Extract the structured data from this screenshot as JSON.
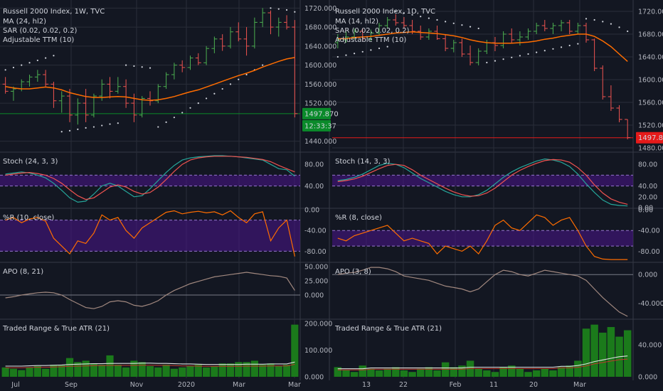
{
  "colors": {
    "background": "#131722",
    "grid": "#2a2e39",
    "divider": "#363a45",
    "up": "#26a69a",
    "candle_up": "#4caf50",
    "candle_down": "#ef5350",
    "ma": "#ff6d00",
    "stoch_k": "#26a69a",
    "stoch_d": "#ef5350",
    "band": "#4a148c",
    "wr": "#ff6d00",
    "apo": "#a1887f",
    "atr": "#e0e0e0",
    "vol": "#1b7a1b",
    "price_green": "#0a8a2a",
    "price_red": "#e51a1a"
  },
  "chart_data": [
    {
      "type": "candlestick",
      "panel": "left",
      "title": "Russell 2000 Index, 1W, TVC",
      "indicators": [
        "MA (24, hl2)",
        "SAR (0.02, 0.02, 0.2)",
        "Adjustable TTM (10)"
      ],
      "x_ticks": [
        "Jul",
        "Sep",
        "Nov",
        "2020",
        "Mar",
        "Mar"
      ],
      "y_ticks": [
        "1720.000",
        "1680.000",
        "1640.000",
        "1600.000",
        "1560.000",
        "1520.000",
        "1440.000"
      ],
      "ylim": [
        1420,
        1725
      ],
      "last_price_label": "1497.870",
      "countdown_label": "12:33:37",
      "ohlc": [
        [
          1560,
          1575,
          1540,
          1545
        ],
        [
          1545,
          1555,
          1525,
          1550
        ],
        [
          1550,
          1570,
          1545,
          1565
        ],
        [
          1565,
          1580,
          1555,
          1575
        ],
        [
          1575,
          1590,
          1565,
          1580
        ],
        [
          1580,
          1590,
          1555,
          1560
        ],
        [
          1560,
          1565,
          1510,
          1525
        ],
        [
          1525,
          1545,
          1500,
          1535
        ],
        [
          1535,
          1550,
          1480,
          1495
        ],
        [
          1495,
          1530,
          1475,
          1520
        ],
        [
          1520,
          1550,
          1480,
          1495
        ],
        [
          1495,
          1540,
          1490,
          1535
        ],
        [
          1535,
          1570,
          1525,
          1560
        ],
        [
          1560,
          1575,
          1530,
          1545
        ],
        [
          1545,
          1575,
          1540,
          1555
        ],
        [
          1555,
          1570,
          1510,
          1520
        ],
        [
          1520,
          1540,
          1480,
          1495
        ],
        [
          1495,
          1535,
          1490,
          1530
        ],
        [
          1530,
          1545,
          1515,
          1525
        ],
        [
          1525,
          1560,
          1520,
          1555
        ],
        [
          1555,
          1585,
          1550,
          1580
        ],
        [
          1580,
          1605,
          1570,
          1600
        ],
        [
          1600,
          1610,
          1585,
          1595
        ],
        [
          1595,
          1620,
          1590,
          1615
        ],
        [
          1615,
          1625,
          1600,
          1605
        ],
        [
          1605,
          1640,
          1600,
          1635
        ],
        [
          1635,
          1660,
          1625,
          1655
        ],
        [
          1655,
          1665,
          1630,
          1640
        ],
        [
          1640,
          1680,
          1635,
          1670
        ],
        [
          1670,
          1690,
          1650,
          1655
        ],
        [
          1655,
          1680,
          1620,
          1640
        ],
        [
          1640,
          1700,
          1635,
          1690
        ],
        [
          1690,
          1720,
          1680,
          1710
        ],
        [
          1710,
          1715,
          1665,
          1680
        ],
        [
          1680,
          1700,
          1660,
          1690
        ],
        [
          1690,
          1705,
          1675,
          1680
        ],
        [
          1680,
          1695,
          1490,
          1498
        ]
      ],
      "ma": [
        1555,
        1552,
        1550,
        1550,
        1552,
        1554,
        1552,
        1548,
        1542,
        1538,
        1534,
        1532,
        1532,
        1533,
        1534,
        1533,
        1530,
        1527,
        1526,
        1527,
        1530,
        1534,
        1539,
        1544,
        1548,
        1554,
        1560,
        1566,
        1572,
        1578,
        1583,
        1589,
        1596,
        1602,
        1608,
        1613,
        1616
      ],
      "sar": [
        1590,
        1595,
        1600,
        1605,
        1610,
        1615,
        1620,
        1460,
        1462,
        1465,
        1468,
        1470,
        1473,
        1476,
        1478,
        1600,
        1598,
        1596,
        1594,
        1470,
        1480,
        1490,
        1500,
        1510,
        1520,
        1530,
        1540,
        1550,
        1560,
        1570,
        1580,
        1590,
        1600,
        1720,
        1718,
        1716,
        1712
      ],
      "ttm_level": 1497.87
    },
    {
      "type": "candlestick",
      "panel": "right",
      "title": "Russell 2000 Index, 1D, TVC",
      "indicators": [
        "MA (14, hl2)",
        "SAR (0.02, 0.02, 0.2)",
        "Adjustable TTM (10)"
      ],
      "x_ticks": [
        "13",
        "22",
        "Feb",
        "11",
        "20",
        "Mar"
      ],
      "y_ticks": [
        "1720.000",
        "1680.000",
        "1640.000",
        "1600.000",
        "1560.000",
        "1520.000",
        "1480.000"
      ],
      "ylim": [
        1475,
        1730
      ],
      "last_price_label": "1497.870",
      "ohlc": [
        [
          1665,
          1680,
          1655,
          1670
        ],
        [
          1670,
          1685,
          1665,
          1675
        ],
        [
          1675,
          1690,
          1670,
          1685
        ],
        [
          1685,
          1690,
          1668,
          1672
        ],
        [
          1672,
          1688,
          1668,
          1682
        ],
        [
          1682,
          1700,
          1678,
          1695
        ],
        [
          1695,
          1710,
          1690,
          1705
        ],
        [
          1705,
          1715,
          1695,
          1700
        ],
        [
          1700,
          1710,
          1690,
          1695
        ],
        [
          1695,
          1705,
          1680,
          1685
        ],
        [
          1685,
          1695,
          1670,
          1675
        ],
        [
          1675,
          1690,
          1670,
          1685
        ],
        [
          1685,
          1695,
          1670,
          1672
        ],
        [
          1672,
          1680,
          1650,
          1655
        ],
        [
          1655,
          1670,
          1648,
          1665
        ],
        [
          1665,
          1672,
          1640,
          1645
        ],
        [
          1645,
          1660,
          1625,
          1630
        ],
        [
          1630,
          1655,
          1625,
          1650
        ],
        [
          1650,
          1670,
          1645,
          1665
        ],
        [
          1665,
          1675,
          1650,
          1660
        ],
        [
          1660,
          1685,
          1655,
          1680
        ],
        [
          1680,
          1690,
          1665,
          1670
        ],
        [
          1670,
          1685,
          1660,
          1675
        ],
        [
          1675,
          1690,
          1670,
          1685
        ],
        [
          1685,
          1700,
          1680,
          1695
        ],
        [
          1695,
          1705,
          1685,
          1690
        ],
        [
          1690,
          1700,
          1680,
          1695
        ],
        [
          1695,
          1705,
          1685,
          1700
        ],
        [
          1700,
          1705,
          1680,
          1685
        ],
        [
          1685,
          1700,
          1680,
          1695
        ],
        [
          1695,
          1700,
          1665,
          1670
        ],
        [
          1670,
          1672,
          1615,
          1620
        ],
        [
          1620,
          1625,
          1565,
          1570
        ],
        [
          1570,
          1590,
          1545,
          1550
        ],
        [
          1550,
          1555,
          1525,
          1530
        ],
        [
          1530,
          1530,
          1495,
          1498
        ]
      ],
      "ma": [
        1672,
        1672,
        1674,
        1675,
        1676,
        1678,
        1680,
        1682,
        1683,
        1684,
        1683,
        1682,
        1681,
        1679,
        1677,
        1674,
        1670,
        1667,
        1665,
        1664,
        1664,
        1664,
        1665,
        1666,
        1668,
        1671,
        1673,
        1676,
        1678,
        1680,
        1680,
        1676,
        1668,
        1658,
        1645,
        1632
      ],
      "sar": [
        1640,
        1643,
        1646,
        1649,
        1652,
        1655,
        1658,
        1720,
        1717,
        1714,
        1711,
        1708,
        1705,
        1702,
        1699,
        1696,
        1693,
        1690,
        1630,
        1633,
        1636,
        1639,
        1642,
        1645,
        1648,
        1651,
        1654,
        1657,
        1660,
        1663,
        1707,
        1705,
        1702,
        1698,
        1692,
        1685
      ],
      "ttm_level": 1497.87
    },
    {
      "type": "line",
      "panel": "left",
      "title": "Stoch (24, 3, 3)",
      "ylim": [
        0,
        100
      ],
      "y_ticks": [
        "80.00",
        "40.00"
      ],
      "band": [
        40,
        60
      ],
      "series": [
        {
          "values": [
            62,
            64,
            66,
            64,
            60,
            55,
            45,
            32,
            18,
            10,
            12,
            25,
            40,
            45,
            40,
            30,
            20,
            22,
            35,
            50,
            65,
            78,
            88,
            92,
            94,
            95,
            96,
            96,
            95,
            94,
            92,
            90,
            88,
            80,
            72,
            70,
            58
          ]
        },
        {
          "values": [
            60,
            62,
            64,
            65,
            63,
            60,
            54,
            45,
            33,
            22,
            15,
            18,
            28,
            38,
            42,
            38,
            30,
            25,
            28,
            38,
            52,
            67,
            80,
            88,
            92,
            94,
            95,
            95,
            95,
            94,
            93,
            91,
            89,
            85,
            78,
            72,
            66
          ]
        }
      ]
    },
    {
      "type": "line",
      "panel": "right",
      "title": "Stoch (14, 3, 3)",
      "ylim": [
        0,
        100
      ],
      "y_ticks": [
        "80.00",
        "40.00",
        "20.00",
        "0.00"
      ],
      "band": [
        40,
        60
      ],
      "series": [
        {
          "values": [
            50,
            52,
            56,
            62,
            70,
            78,
            82,
            80,
            74,
            64,
            54,
            46,
            38,
            30,
            24,
            20,
            20,
            24,
            32,
            44,
            56,
            66,
            74,
            80,
            86,
            90,
            88,
            84,
            76,
            62,
            44,
            28,
            14,
            6,
            4,
            3
          ]
        },
        {
          "values": [
            48,
            50,
            53,
            58,
            65,
            72,
            78,
            80,
            78,
            70,
            60,
            52,
            44,
            36,
            29,
            24,
            21,
            22,
            27,
            36,
            48,
            60,
            69,
            76,
            82,
            87,
            89,
            88,
            84,
            74,
            60,
            42,
            27,
            16,
            10,
            6
          ]
        }
      ]
    },
    {
      "type": "line",
      "panel": "left",
      "title": "%R (10, close)",
      "ylim": [
        -100,
        0
      ],
      "y_ticks": [
        "0.00",
        "-40.00",
        "-80.00"
      ],
      "band": [
        -80,
        -20
      ],
      "values": [
        -20,
        -15,
        -25,
        -18,
        -15,
        -22,
        -55,
        -70,
        -85,
        -60,
        -65,
        -45,
        -10,
        -20,
        -15,
        -40,
        -55,
        -35,
        -25,
        -15,
        -5,
        -2,
        -8,
        -5,
        -3,
        -6,
        -4,
        -10,
        -2,
        -15,
        -25,
        -8,
        -4,
        -60,
        -35,
        -20,
        -90
      ]
    },
    {
      "type": "line",
      "panel": "right",
      "title": "%R (8, close)",
      "ylim": [
        -100,
        0
      ],
      "y_ticks": [
        "0.00",
        "-40.00",
        "-80.00"
      ],
      "band": [
        -70,
        -40
      ],
      "values": [
        -55,
        -60,
        -50,
        -45,
        -40,
        -35,
        -30,
        -45,
        -60,
        -55,
        -60,
        -65,
        -85,
        -70,
        -75,
        -80,
        -70,
        -85,
        -60,
        -30,
        -20,
        -35,
        -40,
        -25,
        -10,
        -15,
        -30,
        -20,
        -15,
        -40,
        -70,
        -90,
        -95,
        -96,
        -96,
        -96
      ]
    },
    {
      "type": "line",
      "panel": "left",
      "title": "APO (8, 21)",
      "ylim": [
        -40,
        55
      ],
      "y_ticks": [
        "50.000",
        "25.000",
        "0.000"
      ],
      "values": [
        -5,
        -3,
        0,
        2,
        4,
        5,
        4,
        0,
        -8,
        -15,
        -22,
        -24,
        -20,
        -12,
        -10,
        -12,
        -18,
        -20,
        -16,
        -10,
        0,
        8,
        14,
        20,
        24,
        28,
        32,
        34,
        36,
        38,
        40,
        38,
        36,
        34,
        33,
        30,
        8
      ]
    },
    {
      "type": "line",
      "panel": "right",
      "title": "APO (3, 8)",
      "ylim": [
        -60,
        15
      ],
      "y_ticks": [
        "0.000",
        "-40.000"
      ],
      "values": [
        0,
        2,
        3,
        6,
        10,
        10,
        8,
        4,
        -2,
        -4,
        -6,
        -8,
        -12,
        -16,
        -18,
        -20,
        -24,
        -20,
        -10,
        0,
        6,
        4,
        0,
        -2,
        2,
        6,
        4,
        2,
        0,
        -2,
        -8,
        -20,
        -32,
        -42,
        -52,
        -58
      ]
    },
    {
      "type": "bar",
      "panel": "left",
      "title": "Traded Range & True ATR (21)",
      "ylim": [
        0,
        210
      ],
      "y_ticks": [
        "200.000",
        "100.000",
        "0.000"
      ],
      "values": [
        35,
        30,
        25,
        35,
        40,
        30,
        45,
        45,
        70,
        55,
        60,
        50,
        45,
        80,
        45,
        35,
        60,
        55,
        40,
        35,
        45,
        30,
        35,
        40,
        45,
        35,
        40,
        50,
        50,
        55,
        55,
        60,
        45,
        50,
        40,
        45,
        195
      ],
      "atr": [
        40,
        40,
        40,
        41,
        42,
        42,
        43,
        44,
        46,
        47,
        48,
        49,
        49,
        50,
        50,
        50,
        50,
        51,
        51,
        50,
        50,
        49,
        48,
        48,
        47,
        46,
        46,
        46,
        46,
        46,
        47,
        47,
        47,
        48,
        48,
        48,
        55
      ]
    },
    {
      "type": "bar",
      "panel": "right",
      "title": "Traded Range & True ATR (21)",
      "ylim": [
        0,
        70
      ],
      "y_ticks": [
        "40.000",
        "0.000"
      ],
      "values": [
        12,
        8,
        6,
        14,
        10,
        8,
        10,
        12,
        8,
        6,
        10,
        12,
        8,
        18,
        12,
        14,
        20,
        10,
        8,
        6,
        12,
        14,
        10,
        6,
        8,
        10,
        8,
        12,
        14,
        20,
        60,
        65,
        55,
        62,
        50,
        58
      ],
      "atr": [
        10,
        10,
        10,
        10,
        11,
        11,
        11,
        11,
        11,
        11,
        11,
        11,
        11,
        11,
        11,
        11,
        12,
        12,
        12,
        12,
        12,
        12,
        12,
        12,
        12,
        12,
        12,
        13,
        13,
        14,
        16,
        19,
        21,
        23,
        25,
        26
      ]
    }
  ]
}
